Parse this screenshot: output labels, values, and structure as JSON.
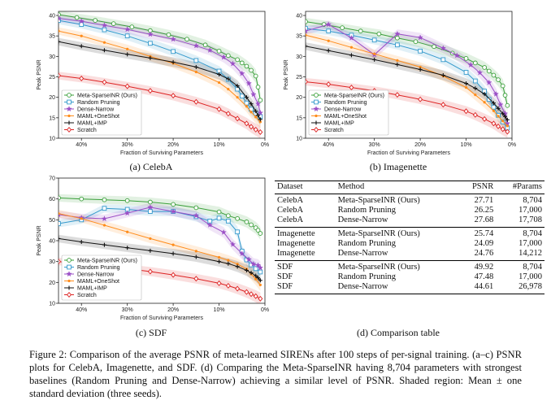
{
  "panels": [
    {
      "id": "celeba",
      "subcaption": "(a) CelebA",
      "chart_data": {
        "type": "line",
        "xlabel": "Fraction of Surviving Parameters",
        "ylabel": "Peak PSNR",
        "x_reversed": true,
        "xlim": [
          0.45,
          0.0
        ],
        "ylim": [
          10,
          41
        ],
        "xticks": [
          0.4,
          0.3,
          0.2,
          0.1,
          0.0
        ],
        "xticklabels": [
          "40%",
          "30%",
          "20%",
          "10%",
          "0%"
        ],
        "yticks": [
          10,
          15,
          20,
          25,
          30,
          35,
          40
        ],
        "legend": "lower-left",
        "series": [
          {
            "name": "Meta-SparseINR (Ours)",
            "color": "#3a9f3a",
            "marker": "circle",
            "x": [
              0.45,
              0.41,
              0.37,
              0.33,
              0.29,
              0.25,
              0.21,
              0.17,
              0.13,
              0.1,
              0.08,
              0.06,
              0.05,
              0.04,
              0.03,
              0.02,
              0.015,
              0.01
            ],
            "y": [
              40.2,
              39.5,
              38.8,
              38.0,
              37.2,
              36.3,
              35.3,
              34.2,
              32.8,
              31.3,
              30.2,
              29.2,
              28.4,
              27.6,
              26.6,
              25.2,
              22.5,
              19.3
            ]
          },
          {
            "name": "Random Pruning",
            "color": "#3399cc",
            "marker": "square",
            "x": [
              0.45,
              0.4,
              0.35,
              0.3,
              0.25,
              0.2,
              0.15,
              0.1,
              0.08,
              0.06,
              0.05,
              0.04,
              0.03,
              0.02,
              0.01
            ],
            "y": [
              38.8,
              37.8,
              36.5,
              35.0,
              33.2,
              31.2,
              29.0,
              26.4,
              24.4,
              22.0,
              20.3,
              18.6,
              17.1,
              16.1,
              15.3
            ]
          },
          {
            "name": "Dense-Narrow",
            "color": "#9b4fc6",
            "marker": "star",
            "x": [
              0.45,
              0.4,
              0.35,
              0.3,
              0.25,
              0.2,
              0.15,
              0.12,
              0.09,
              0.07,
              0.05,
              0.035,
              0.025,
              0.015,
              0.01
            ],
            "y": [
              39.3,
              38.6,
              37.6,
              36.6,
              35.4,
              34.2,
              32.6,
              31.5,
              29.8,
              28.2,
              25.8,
              23.4,
              20.7,
              18.4,
              16.2
            ]
          },
          {
            "name": "MAML+OneShot",
            "color": "#ff8c1a",
            "marker": "dot",
            "x": [
              0.45,
              0.4,
              0.35,
              0.3,
              0.25,
              0.2,
              0.15,
              0.1,
              0.08,
              0.06,
              0.04,
              0.03,
              0.02,
              0.01
            ],
            "y": [
              36.2,
              35.0,
              33.4,
              31.8,
              30.0,
              28.3,
              26.2,
              23.6,
              22.0,
              20.0,
              17.8,
              16.4,
              15.2,
              14.0
            ]
          },
          {
            "name": "MAML+IMP",
            "color": "#111111",
            "marker": "plus",
            "x": [
              0.45,
              0.4,
              0.35,
              0.3,
              0.25,
              0.2,
              0.15,
              0.1,
              0.08,
              0.06,
              0.04,
              0.03,
              0.02,
              0.015,
              0.01
            ],
            "y": [
              33.6,
              32.5,
              31.5,
              30.5,
              29.6,
              28.6,
              27.4,
              25.6,
              24.5,
              22.8,
              20.0,
              18.4,
              16.6,
              15.6,
              14.6
            ]
          },
          {
            "name": "Scratch",
            "color": "#dd2222",
            "marker": "diamond",
            "x": [
              0.45,
              0.4,
              0.35,
              0.3,
              0.25,
              0.2,
              0.15,
              0.1,
              0.08,
              0.06,
              0.04,
              0.03,
              0.02,
              0.01
            ],
            "y": [
              25.3,
              24.6,
              23.7,
              22.7,
              21.6,
              20.4,
              18.9,
              17.1,
              16.0,
              14.8,
              13.6,
              12.8,
              12.1,
              11.5
            ]
          }
        ]
      }
    },
    {
      "id": "imagenette",
      "subcaption": "(b) Imagenette",
      "chart_data": {
        "type": "line",
        "xlabel": "Fraction of Surviving Parameters",
        "ylabel": "Peak PSNR",
        "x_reversed": true,
        "xlim": [
          0.45,
          0.0
        ],
        "ylim": [
          10,
          41
        ],
        "xticks": [
          0.4,
          0.3,
          0.2,
          0.1,
          0.0
        ],
        "xticklabels": [
          "40%",
          "30%",
          "20%",
          "10%",
          "0%"
        ],
        "yticks": [
          10,
          15,
          20,
          25,
          30,
          35,
          40
        ],
        "legend": "lower-left",
        "series": [
          {
            "name": "Meta-SparseINR (Ours)",
            "color": "#3a9f3a",
            "marker": "circle",
            "x": [
              0.45,
              0.41,
              0.37,
              0.33,
              0.29,
              0.25,
              0.21,
              0.17,
              0.13,
              0.1,
              0.08,
              0.06,
              0.05,
              0.04,
              0.03,
              0.02,
              0.015,
              0.01
            ],
            "y": [
              38.5,
              37.8,
              37.0,
              36.2,
              35.5,
              34.5,
              33.6,
              32.4,
              30.8,
              29.5,
              28.4,
              27.3,
              26.4,
              25.4,
              24.3,
              22.8,
              20.5,
              18.0
            ]
          },
          {
            "name": "Random Pruning",
            "color": "#3399cc",
            "marker": "square",
            "x": [
              0.45,
              0.4,
              0.35,
              0.3,
              0.25,
              0.2,
              0.15,
              0.1,
              0.08,
              0.06,
              0.05,
              0.04,
              0.03,
              0.02,
              0.01
            ],
            "y": [
              36.8,
              36.2,
              35.2,
              34.0,
              32.8,
              31.3,
              29.2,
              26.1,
              24.0,
              21.5,
              19.5,
              17.6,
              15.6,
              14.0,
              12.5
            ]
          },
          {
            "name": "Dense-Narrow",
            "color": "#9b4fc6",
            "marker": "star",
            "x": [
              0.45,
              0.4,
              0.35,
              0.3,
              0.25,
              0.2,
              0.15,
              0.12,
              0.09,
              0.07,
              0.05,
              0.035,
              0.025,
              0.015,
              0.01
            ],
            "y": [
              36.2,
              37.8,
              34.5,
              30.4,
              35.5,
              34.6,
              32.0,
              30.2,
              27.9,
              26.0,
              23.6,
              20.8,
              18.2,
              16.0,
              13.6
            ]
          },
          {
            "name": "MAML+OneShot",
            "color": "#ff8c1a",
            "marker": "dot",
            "x": [
              0.45,
              0.4,
              0.35,
              0.3,
              0.25,
              0.2,
              0.15,
              0.1,
              0.08,
              0.06,
              0.04,
              0.03,
              0.02,
              0.01
            ],
            "y": [
              35.2,
              33.8,
              32.2,
              30.6,
              29.0,
              27.4,
              25.2,
              22.4,
              20.6,
              18.8,
              16.7,
              15.4,
              14.2,
              13.0
            ]
          },
          {
            "name": "MAML+IMP",
            "color": "#111111",
            "marker": "plus",
            "x": [
              0.45,
              0.4,
              0.35,
              0.3,
              0.25,
              0.2,
              0.15,
              0.1,
              0.08,
              0.06,
              0.04,
              0.03,
              0.02,
              0.015,
              0.01
            ],
            "y": [
              32.5,
              31.4,
              30.3,
              29.2,
              28.0,
              26.8,
              25.4,
              23.4,
              22.2,
              20.8,
              18.6,
              17.3,
              16.0,
              15.3,
              14.5
            ]
          },
          {
            "name": "Scratch",
            "color": "#dd2222",
            "marker": "diamond",
            "x": [
              0.45,
              0.4,
              0.35,
              0.3,
              0.25,
              0.2,
              0.15,
              0.1,
              0.08,
              0.06,
              0.04,
              0.03,
              0.02,
              0.01
            ],
            "y": [
              23.8,
              23.2,
              22.4,
              21.6,
              20.6,
              19.5,
              18.2,
              16.6,
              15.7,
              14.7,
              13.6,
              12.9,
              12.2,
              11.6
            ]
          }
        ]
      }
    },
    {
      "id": "sdf",
      "subcaption": "(c) SDF",
      "chart_data": {
        "type": "line",
        "xlabel": "Fraction of Surviving Parameters",
        "ylabel": "Peak PSNR",
        "x_reversed": true,
        "xlim": [
          0.45,
          0.0
        ],
        "ylim": [
          10,
          70
        ],
        "xticks": [
          0.4,
          0.3,
          0.2,
          0.1,
          0.0
        ],
        "xticklabels": [
          "40%",
          "30%",
          "20%",
          "10%",
          "0%"
        ],
        "yticks": [
          10,
          20,
          30,
          40,
          50,
          60,
          70
        ],
        "legend": "lower-left",
        "series": [
          {
            "name": "Meta-SparseINR (Ours)",
            "color": "#3a9f3a",
            "marker": "circle",
            "x": [
              0.45,
              0.4,
              0.35,
              0.3,
              0.25,
              0.2,
              0.15,
              0.1,
              0.08,
              0.06,
              0.04,
              0.03,
              0.02,
              0.015,
              0.01
            ],
            "y": [
              60.5,
              60.0,
              59.6,
              59.2,
              58.5,
              57.4,
              55.8,
              53.8,
              52.0,
              50.6,
              49.0,
              47.6,
              46.2,
              45.0,
              43.5
            ]
          },
          {
            "name": "Random Pruning",
            "color": "#3399cc",
            "marker": "square",
            "x": [
              0.45,
              0.4,
              0.35,
              0.3,
              0.25,
              0.2,
              0.15,
              0.12,
              0.1,
              0.08,
              0.06,
              0.05,
              0.04,
              0.03,
              0.02,
              0.01
            ],
            "y": [
              48.2,
              50.0,
              55.5,
              55.0,
              54.0,
              54.0,
              51.5,
              49.4,
              50.8,
              49.4,
              44.2,
              35.0,
              30.8,
              28.4,
              26.6,
              25.0
            ]
          },
          {
            "name": "Dense-Narrow",
            "color": "#9b4fc6",
            "marker": "star",
            "x": [
              0.45,
              0.4,
              0.35,
              0.3,
              0.25,
              0.2,
              0.15,
              0.12,
              0.09,
              0.07,
              0.05,
              0.035,
              0.025,
              0.015,
              0.01
            ],
            "y": [
              52.5,
              51.0,
              50.5,
              53.2,
              56.0,
              54.0,
              52.0,
              47.5,
              44.0,
              38.2,
              33.8,
              31.0,
              28.8,
              28.2,
              27.0
            ]
          },
          {
            "name": "MAML+OneShot",
            "color": "#ff8c1a",
            "marker": "dot",
            "x": [
              0.45,
              0.4,
              0.35,
              0.3,
              0.25,
              0.2,
              0.15,
              0.1,
              0.08,
              0.06,
              0.04,
              0.03,
              0.02,
              0.01
            ],
            "y": [
              53.0,
              50.6,
              47.4,
              44.2,
              41.0,
              38.0,
              35.0,
              32.0,
              30.6,
              28.8,
              26.4,
              24.0,
              21.6,
              18.8
            ]
          },
          {
            "name": "MAML+IMP",
            "color": "#111111",
            "marker": "plus",
            "x": [
              0.45,
              0.4,
              0.35,
              0.3,
              0.25,
              0.2,
              0.15,
              0.1,
              0.08,
              0.06,
              0.04,
              0.03,
              0.02,
              0.015,
              0.01
            ],
            "y": [
              41.0,
              39.4,
              38.0,
              36.6,
              35.2,
              33.8,
              32.2,
              30.0,
              29.0,
              27.6,
              25.8,
              24.6,
              23.2,
              22.2,
              21.0
            ]
          },
          {
            "name": "Scratch",
            "color": "#dd2222",
            "marker": "diamond",
            "x": [
              0.45,
              0.4,
              0.35,
              0.3,
              0.25,
              0.2,
              0.15,
              0.1,
              0.08,
              0.06,
              0.04,
              0.03,
              0.02,
              0.01
            ],
            "y": [
              30.0,
              29.0,
              27.8,
              26.6,
              25.2,
              23.6,
              21.8,
              19.6,
              18.4,
              17.0,
              15.4,
              14.4,
              13.4,
              12.2
            ]
          }
        ]
      }
    }
  ],
  "table": {
    "caption": "(d) Comparison table",
    "headers": [
      "Dataset",
      "Method",
      "PSNR",
      "#Params"
    ],
    "groups": [
      [
        [
          "CelebA",
          "Meta-SparseINR (Ours)",
          "27.71",
          "8,704"
        ],
        [
          "CelebA",
          "Random Pruning",
          "26.25",
          "17,000"
        ],
        [
          "CelebA",
          "Dense-Narrow",
          "27.68",
          "17,708"
        ]
      ],
      [
        [
          "Imagenette",
          "Meta-SparseINR (Ours)",
          "25.74",
          "8,704"
        ],
        [
          "Imagenette",
          "Random Pruning",
          "24.09",
          "17,000"
        ],
        [
          "Imagenette",
          "Dense-Narrow",
          "24.76",
          "14,212"
        ]
      ],
      [
        [
          "SDF",
          "Meta-SparseINR (Ours)",
          "49.92",
          "8,704"
        ],
        [
          "SDF",
          "Random Pruning",
          "47.48",
          "17,000"
        ],
        [
          "SDF",
          "Dense-Narrow",
          "44.61",
          "26,978"
        ]
      ]
    ]
  },
  "caption": "Figure 2: Comparison of the average PSNR of meta-learned SIRENs after 100 steps of per-signal training. (a–c) PSNR plots for CelebA, Imagenette, and SDF. (d) Comparing the Meta-SparseINR having 8,704 parameters with strongest baselines (Random Pruning and Dense-Narrow) achieving a similar level of PSNR. Shaded region: Mean ± one standard deviation (three seeds)."
}
